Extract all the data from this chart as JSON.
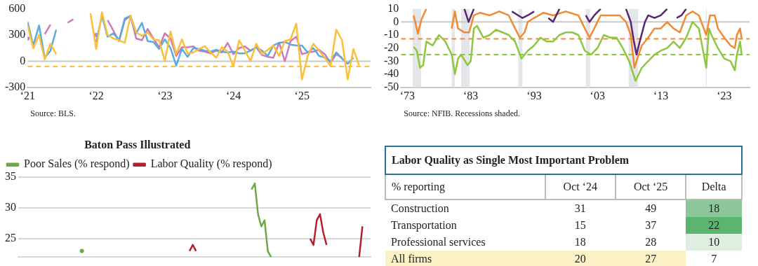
{
  "chart_data": [
    {
      "type": "line",
      "annotations": [
        "Source: BLS."
      ],
      "x": [
        "2021-01",
        "2021-02",
        "2021-03",
        "2021-04",
        "2021-05",
        "2021-06",
        "2021-07",
        "2021-08",
        "2021-09",
        "2021-10",
        "2021-11",
        "2021-12",
        "2022-01",
        "2022-02",
        "2022-03",
        "2022-04",
        "2022-05",
        "2022-06",
        "2022-07",
        "2022-08",
        "2022-09",
        "2022-10",
        "2022-11",
        "2022-12",
        "2023-01",
        "2023-02",
        "2023-03",
        "2023-04",
        "2023-05",
        "2023-06",
        "2023-07",
        "2023-08",
        "2023-09",
        "2023-10",
        "2023-11",
        "2023-12",
        "2024-01",
        "2024-02",
        "2024-03",
        "2024-04",
        "2024-05",
        "2024-06",
        "2024-07",
        "2024-08",
        "2024-09",
        "2024-10",
        "2024-11",
        "2024-12",
        "2025-01",
        "2025-02",
        "2025-03",
        "2025-04",
        "2025-05",
        "2025-06",
        "2025-07",
        "2025-08",
        "2025-09",
        "2025-10",
        "2025-11"
      ],
      "xlim": [
        "2021",
        "2026"
      ],
      "xticks": [
        {
          "value": "2021",
          "label": "‘21"
        },
        {
          "value": "2022",
          "label": "‘22"
        },
        {
          "value": "2023",
          "label": "‘23"
        },
        {
          "value": "2024",
          "label": "‘24"
        },
        {
          "value": "2025",
          "label": "‘25"
        }
      ],
      "ylim": [
        -300,
        600
      ],
      "yticks": [
        -300,
        0,
        300,
        600
      ],
      "ref_lines": [
        {
          "axis": "y",
          "value": 0,
          "color": "#c8c8c8",
          "line_style": "solid"
        },
        {
          "axis": "y",
          "value": -60,
          "color": "#fbbf3c",
          "line_style": "dashed"
        }
      ],
      "series": [
        {
          "color": "#fbbf3c",
          "values": [
            410,
            150,
            300,
            20,
            200,
            80,
            null,
            null,
            null,
            null,
            null,
            550,
            140,
            560,
            300,
            260,
            240,
            210,
            520,
            330,
            290,
            330,
            250,
            240,
            0,
            340,
            80,
            250,
            90,
            100,
            140,
            170,
            100,
            40,
            160,
            110,
            -60,
            240,
            120,
            0,
            200,
            80,
            130,
            180,
            60,
            230,
            250,
            430,
            -210,
            60,
            200,
            120,
            40,
            -60,
            360,
            240,
            -210,
            140,
            -50
          ]
        },
        {
          "color": "#5aaae0",
          "values": [
            450,
            180,
            410,
            40,
            120,
            360,
            null,
            null,
            null,
            null,
            null,
            null,
            220,
            520,
            280,
            320,
            240,
            490,
            520,
            320,
            440,
            230,
            220,
            140,
            250,
            150,
            -50,
            140,
            50,
            150,
            140,
            120,
            110,
            130,
            110,
            100,
            110,
            90,
            90,
            120,
            160,
            120,
            60,
            180,
            210,
            220,
            190,
            180,
            180,
            100,
            150,
            60,
            40,
            0,
            100,
            30,
            -30,
            40,
            null
          ]
        },
        {
          "color": "#cc7ab8",
          "values": [
            260,
            null,
            null,
            310,
            420,
            null,
            null,
            440,
            480,
            null,
            null,
            null,
            300,
            null,
            470,
            350,
            230,
            470,
            520,
            260,
            240,
            370,
            260,
            160,
            320,
            260,
            60,
            160,
            160,
            170,
            120,
            110,
            90,
            120,
            100,
            210,
            80,
            150,
            170,
            120,
            160,
            70,
            50,
            40,
            210,
            0,
            230,
            280,
            80,
            100,
            110,
            130,
            80,
            -20,
            80,
            40,
            null,
            null,
            null
          ]
        }
      ]
    },
    {
      "type": "line",
      "annotations": [
        "Source: NFIB. Recessions shaded."
      ],
      "xlim": [
        "1972",
        "2027"
      ],
      "xticks": [
        {
          "value": "1973",
          "label": "‘73"
        },
        {
          "value": "1983",
          "label": "‘83"
        },
        {
          "value": "1993",
          "label": "‘93"
        },
        {
          "value": "2003",
          "label": "‘03"
        },
        {
          "value": "2013",
          "label": "‘13"
        },
        {
          "value": "2023",
          "label": "‘23"
        }
      ],
      "ylim": [
        -50,
        10
      ],
      "yticks": [
        -50,
        -40,
        -30,
        -20,
        -10,
        0,
        10
      ],
      "bands": [
        {
          "axis": "x",
          "from": "1973-11",
          "to": "1975-03",
          "color": "#e4e6ea"
        },
        {
          "axis": "x",
          "from": "1980-01",
          "to": "1980-07",
          "color": "#e4e6ea"
        },
        {
          "axis": "x",
          "from": "1981-07",
          "to": "1982-11",
          "color": "#e4e6ea"
        },
        {
          "axis": "x",
          "from": "1990-07",
          "to": "1991-03",
          "color": "#e4e6ea"
        },
        {
          "axis": "x",
          "from": "2001-03",
          "to": "2001-11",
          "color": "#e4e6ea"
        },
        {
          "axis": "x",
          "from": "2007-12",
          "to": "2009-06",
          "color": "#e4e6ea"
        },
        {
          "axis": "x",
          "from": "2020-02",
          "to": "2020-04",
          "color": "#e4e6ea"
        }
      ],
      "ref_lines": [
        {
          "axis": "y",
          "value": 0,
          "color": "#c8c8c8",
          "line_style": "solid"
        },
        {
          "axis": "y",
          "value": -13,
          "color": "#f08a33",
          "line_style": "dashed"
        },
        {
          "axis": "y",
          "value": -25,
          "color": "#8dc63f",
          "line_style": "dashed"
        }
      ],
      "series": [
        {
          "color": "#5b2670",
          "x": [
            "1982-01",
            "1982-09",
            "1983-07",
            "1984-01",
            "1989-01",
            "1989-07",
            "1990-07",
            "1991-03",
            "1992-01",
            "1993-01",
            "1994-01",
            "1995-01",
            "1995-04",
            "1996-01",
            "1997-01",
            "1997-07",
            "2000-07",
            "2001-03",
            "2001-10",
            "2002-07",
            "2003-07",
            "2004-01",
            "2007-01",
            "2007-07",
            "2008-04",
            "2008-10",
            "2009-03",
            "2009-09",
            "2010-07",
            "2011-01",
            "2012-01",
            "2013-01",
            "2014-01",
            "2014-07",
            "2015-01",
            "2015-07",
            "2016-04",
            "2017-01"
          ],
          "values": [
            10,
            0,
            10,
            null,
            null,
            8,
            5,
            3,
            5,
            8,
            null,
            null,
            3,
            0,
            10,
            null,
            null,
            5,
            0,
            5,
            10,
            null,
            null,
            10,
            0,
            -15,
            -25,
            -15,
            0,
            5,
            3,
            5,
            10,
            null,
            null,
            3,
            5,
            10
          ]
        },
        {
          "color": "#f08a33",
          "x": [
            "1974-01",
            "1974-09",
            "1975-04",
            "1976-01",
            "1976-07",
            "1979-07",
            "1980-01",
            "1980-07",
            "1981-01",
            "1982-01",
            "1982-10",
            "1983-07",
            "1984-07",
            "1986-01",
            "1987-07",
            "1989-01",
            "1990-01",
            "1990-10",
            "1991-07",
            "1992-01",
            "1993-01",
            "1994-07",
            "1996-01",
            "1998-01",
            "2000-01",
            "2001-01",
            "2001-10",
            "2002-07",
            "2003-07",
            "2005-01",
            "2006-07",
            "2007-07",
            "2008-04",
            "2008-11",
            "2009-07",
            "2010-01",
            "2011-01",
            "2012-01",
            "2013-01",
            "2014-01",
            "2015-01",
            "2016-01",
            "2017-01",
            "2018-01",
            "2019-01",
            "2020-03",
            "2020-10",
            "2021-07",
            "2022-01",
            "2023-01",
            "2024-01",
            "2024-09",
            "2025-01",
            "2025-07",
            "2025-10"
          ],
          "values": [
            5,
            -9,
            2,
            10,
            null,
            null,
            -5,
            8,
            -5,
            -8,
            -8,
            5,
            7,
            5,
            8,
            5,
            -5,
            -12,
            -8,
            0,
            3,
            7,
            5,
            8,
            5,
            -5,
            -12,
            -5,
            5,
            5,
            5,
            0,
            -10,
            -35,
            -25,
            -18,
            -12,
            -5,
            -5,
            0,
            -5,
            -8,
            5,
            8,
            5,
            -10,
            5,
            5,
            -5,
            -12,
            -18,
            -20,
            -10,
            -5,
            -13
          ]
        },
        {
          "color": "#8dc63f",
          "x": [
            "1974-01",
            "1974-07",
            "1975-01",
            "1975-07",
            "1976-01",
            "1977-01",
            "1978-01",
            "1979-01",
            "1980-01",
            "1980-07",
            "1981-01",
            "1981-07",
            "1982-07",
            "1983-01",
            "1983-07",
            "1984-01",
            "1985-01",
            "1986-01",
            "1987-01",
            "1988-01",
            "1989-01",
            "1990-01",
            "1991-01",
            "1992-01",
            "1993-01",
            "1994-01",
            "1995-01",
            "1996-01",
            "1997-01",
            "1998-01",
            "1999-01",
            "2000-01",
            "2001-01",
            "2002-01",
            "2003-01",
            "2004-01",
            "2005-01",
            "2006-01",
            "2007-01",
            "2008-01",
            "2009-01",
            "2010-01",
            "2011-01",
            "2012-01",
            "2013-01",
            "2014-01",
            "2015-01",
            "2016-01",
            "2017-01",
            "2018-01",
            "2019-01",
            "2020-03",
            "2020-08",
            "2021-01",
            "2022-01",
            "2023-01",
            "2024-01",
            "2024-09",
            "2025-01",
            "2025-07",
            "2025-10"
          ],
          "values": [
            -19,
            -22,
            -35,
            -33,
            -15,
            -18,
            -10,
            -15,
            -25,
            -40,
            -28,
            -25,
            -33,
            -30,
            -5,
            -3,
            -12,
            -10,
            -6,
            -8,
            -10,
            -15,
            -28,
            -22,
            -18,
            -12,
            -15,
            -15,
            -10,
            -8,
            -8,
            -10,
            -22,
            -25,
            -20,
            -10,
            -12,
            -12,
            -20,
            -30,
            -45,
            -35,
            -30,
            -25,
            -22,
            -20,
            -15,
            -20,
            -12,
            0,
            -5,
            -35,
            -5,
            -10,
            -20,
            -28,
            -30,
            -37,
            -25,
            -15,
            -25
          ]
        }
      ]
    },
    {
      "type": "line",
      "legend_title": "Baton Pass Illustrated",
      "legend": "top left",
      "grid": "y",
      "tick_labels": "y",
      "categories": [
        null,
        null,
        null,
        null,
        null,
        null,
        null,
        null,
        null,
        null,
        null,
        null,
        null,
        null,
        null,
        null,
        null,
        null,
        null,
        null,
        null,
        null,
        null,
        null,
        null,
        null,
        null,
        null,
        null,
        null,
        null,
        null,
        null,
        null,
        null,
        null,
        null,
        null,
        null,
        null,
        null,
        null,
        null,
        null,
        null,
        null,
        null,
        null,
        null,
        null,
        null,
        null,
        null,
        null,
        null,
        null,
        null,
        null,
        null,
        null,
        null,
        null,
        null,
        null,
        null,
        null,
        null,
        null,
        null,
        null,
        null,
        null,
        null,
        null,
        null,
        null,
        null,
        null,
        null,
        null,
        null,
        null,
        null,
        null,
        null,
        null,
        null,
        null,
        null,
        null,
        null,
        null,
        null,
        null,
        null,
        null,
        null,
        null,
        null,
        null,
        null,
        null,
        null,
        null,
        null,
        null,
        null,
        null
      ],
      "ylim": [
        22,
        35
      ],
      "yticks": [
        25,
        30,
        35
      ],
      "series": [
        {
          "name": "Poor Sales (% respond)",
          "color": "#6fa846",
          "values": [
            null,
            null,
            null,
            null,
            null,
            null,
            null,
            null,
            null,
            null,
            null,
            null,
            null,
            null,
            null,
            null,
            null,
            null,
            null,
            23,
            null,
            null,
            null,
            null,
            null,
            null,
            null,
            null,
            null,
            null,
            null,
            null,
            null,
            null,
            null,
            null,
            null,
            null,
            null,
            null,
            null,
            null,
            null,
            null,
            null,
            null,
            null,
            null,
            null,
            null,
            null,
            null,
            null,
            null,
            null,
            null,
            null,
            null,
            null,
            null,
            null,
            null,
            null,
            null,
            null,
            null,
            null,
            null,
            null,
            null,
            null,
            33,
            34,
            29,
            27,
            28,
            23,
            22,
            null,
            null,
            null,
            null,
            null,
            null,
            null,
            null,
            null,
            null,
            null,
            null,
            null,
            null,
            null,
            null,
            null,
            null,
            null,
            null,
            null,
            null,
            null,
            null,
            null,
            null,
            null,
            null,
            null,
            null
          ]
        },
        {
          "name": "Labor Quality (% respond)",
          "color": "#b5202e",
          "values": [
            null,
            null,
            null,
            null,
            null,
            null,
            null,
            null,
            null,
            null,
            null,
            null,
            null,
            null,
            null,
            null,
            null,
            null,
            null,
            null,
            null,
            null,
            null,
            null,
            null,
            null,
            null,
            null,
            null,
            null,
            null,
            null,
            null,
            null,
            null,
            null,
            null,
            null,
            null,
            null,
            null,
            null,
            null,
            null,
            null,
            null,
            null,
            null,
            null,
            null,
            null,
            null,
            23,
            24,
            23,
            null,
            null,
            null,
            null,
            null,
            null,
            null,
            null,
            null,
            null,
            null,
            null,
            null,
            null,
            null,
            null,
            null,
            null,
            null,
            null,
            null,
            null,
            null,
            null,
            null,
            null,
            null,
            null,
            null,
            null,
            null,
            null,
            null,
            null,
            25,
            24,
            28,
            29,
            26,
            24,
            null,
            null,
            null,
            null,
            null,
            null,
            null,
            null,
            null,
            22,
            27,
            null,
            null
          ]
        }
      ]
    },
    {
      "type": "heatmap",
      "title": "Labor Quality as Single Most Important Problem",
      "ylabel": "% reporting",
      "categories": [
        "Oct ‘24",
        "Oct ‘25",
        "Delta"
      ],
      "y_categories": [
        "Construction",
        "Transportation",
        "Professional services",
        "All firms"
      ],
      "data_labels": true,
      "cells": [
        [
          31,
          49,
          18
        ],
        [
          15,
          37,
          22
        ],
        [
          18,
          28,
          10
        ],
        [
          20,
          27,
          7
        ]
      ],
      "colors": [
        [
          "#ffffff",
          "#ffffff",
          "#8cc79b"
        ],
        [
          "#ffffff",
          "#ffffff",
          "#5bb56f"
        ],
        [
          "#ffffff",
          "#ffffff",
          "#deefe2"
        ],
        [
          "#fdf1c6",
          "#fdf1c6",
          "#ffffff"
        ]
      ]
    }
  ]
}
